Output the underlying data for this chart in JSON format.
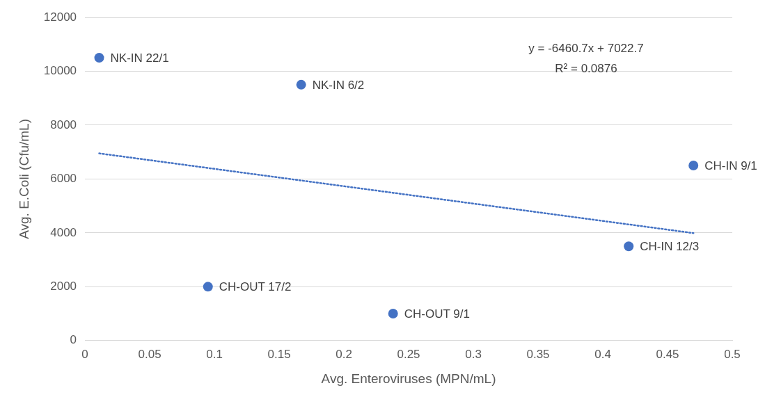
{
  "chart_data": {
    "type": "scatter",
    "xlabel": "Avg. Enteroviruses (MPN/mL)",
    "ylabel": "Avg. E.Coli (Cfu/mL)",
    "x": [
      0.011,
      0.167,
      0.47,
      0.42,
      0.095,
      0.238
    ],
    "series": [
      {
        "color": "#4472c4",
        "values": [
          10500,
          9500,
          6500,
          3500,
          2000,
          1000
        ],
        "marker": "circle"
      },
      {
        "type": "line",
        "color": "#4472c4",
        "x": [
          0.011,
          0.47
        ],
        "values": [
          6950,
          3990
        ],
        "line_style": "dotted",
        "marker": "none"
      }
    ],
    "annotations": [
      {
        "text": "NK-IN 22/1",
        "x": 0.011,
        "y": 10500
      },
      {
        "text": "NK-IN 6/2",
        "x": 0.167,
        "y": 9500
      },
      {
        "text": "CH-IN 9/1",
        "x": 0.47,
        "y": 6500
      },
      {
        "text": "CH-IN 12/3",
        "x": 0.42,
        "y": 3500
      },
      {
        "text": "CH-OUT 17/2",
        "x": 0.095,
        "y": 2000
      },
      {
        "text": "CH-OUT 9/1",
        "x": 0.238,
        "y": 1000
      },
      "y = -6460.7x + 7022.7",
      "R² = 0.0876"
    ],
    "xlim": [
      0,
      0.5
    ],
    "xticks": [
      0,
      0.05,
      0.1,
      0.15,
      0.2,
      0.25,
      0.3,
      0.35,
      0.4,
      0.45,
      0.5
    ],
    "ylim": [
      0,
      12000
    ],
    "yticks": [
      0,
      2000,
      4000,
      6000,
      8000,
      10000,
      12000
    ],
    "grid": "y",
    "legend": false
  }
}
